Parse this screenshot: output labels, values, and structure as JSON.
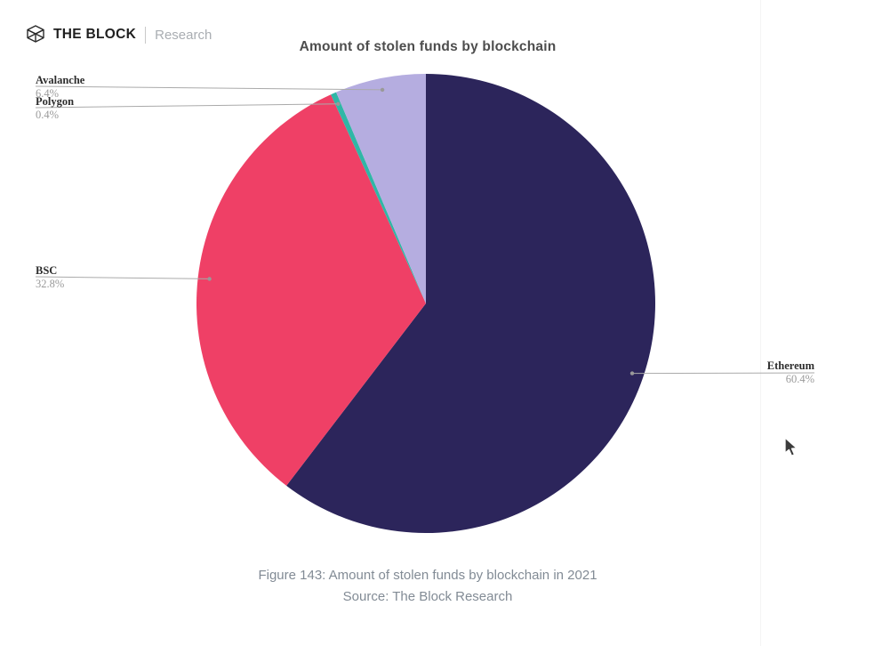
{
  "brand": {
    "name": "THE BLOCK",
    "sub": "Research",
    "logo_icon": "block-cube-icon"
  },
  "chart": {
    "title": "Amount of stolen funds by blockchain",
    "caption_line1": "Figure 143: Amount of stolen funds by blockchain in 2021",
    "caption_line2": "Source: The Block Research"
  },
  "chart_data": {
    "type": "pie",
    "title": "Amount of stolen funds by blockchain",
    "direction": "clockwise",
    "start_angle_deg_from_top": 0,
    "legend_position": "callout-labels",
    "slices": [
      {
        "label": "Ethereum",
        "value": 60.4,
        "display": "60.4%",
        "color": "#2c255b"
      },
      {
        "label": "BSC",
        "value": 32.8,
        "display": "32.8%",
        "color": "#ef4066"
      },
      {
        "label": "Polygon",
        "value": 0.4,
        "display": "0.4%",
        "color": "#2fb7a6"
      },
      {
        "label": "Avalanche",
        "value": 6.4,
        "display": "6.4%",
        "color": "#b5ade0"
      }
    ]
  },
  "colors": {
    "leader_line": "#aaaaaa",
    "leader_dot": "#999999",
    "title_text": "#4d4d4d",
    "caption_text": "#828b95"
  }
}
